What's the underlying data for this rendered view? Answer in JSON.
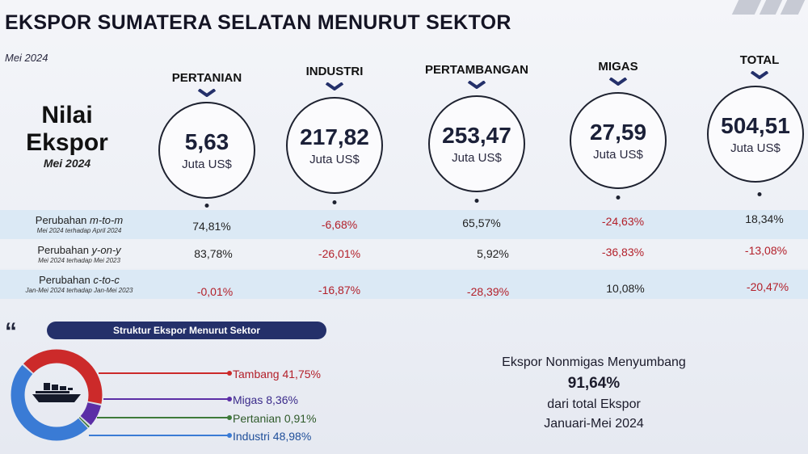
{
  "header": {
    "title": "EKSPOR SUMATERA SELATAN MENURUT SEKTOR",
    "period": "Mei 2024"
  },
  "row_label": {
    "line1": "Nilai",
    "line2": "Ekspor",
    "line3": "Mei 2024"
  },
  "sectors": [
    {
      "name": "PERTANIAN",
      "value": "5,63",
      "unit": "Juta US$",
      "mtom": "74,81%",
      "yony": "83,78%",
      "ctoc": "-0,01%"
    },
    {
      "name": "INDUSTRI",
      "value": "217,82",
      "unit": "Juta US$",
      "mtom": "-6,68%",
      "yony": "-26,01%",
      "ctoc": "-16,87%"
    },
    {
      "name": "PERTAMBANGAN",
      "value": "253,47",
      "unit": "Juta US$",
      "mtom": "65,57%",
      "yony": "5,92%",
      "ctoc": "-28,39%"
    },
    {
      "name": "MIGAS",
      "value": "27,59",
      "unit": "Juta US$",
      "mtom": "-24,63%",
      "yony": "-36,83%",
      "ctoc": "10,08%"
    },
    {
      "name": "TOTAL",
      "value": "504,51",
      "unit": "Juta US$",
      "mtom": "18,34%",
      "yony": "-13,08%",
      "ctoc": "-20,47%"
    }
  ],
  "changes": {
    "mtom": {
      "prefix": "Perubahan ",
      "term": "m-to-m",
      "note": "Mei 2024 terhadap April 2024"
    },
    "yony": {
      "prefix": "Perubahan ",
      "term": "y-on-y",
      "note": "Mei 2024 terhadap Mei 2023"
    },
    "ctoc": {
      "prefix": "Perubahan ",
      "term": "c-to-c",
      "note": "Jan-Mei 2024 terhadap Jan-Mei 2023"
    }
  },
  "structure": {
    "title": "Struktur Ekspor Menurut Sektor",
    "items": [
      {
        "label": "Tambang 41,75%",
        "share": 41.75,
        "color": "#cc2a2a"
      },
      {
        "label": "Migas 8,36%",
        "share": 8.36,
        "color": "#5b2ea6"
      },
      {
        "label": "Pertanian 0,91%",
        "share": 0.91,
        "color": "#3e7a3a"
      },
      {
        "label": "Industri 48,98%",
        "share": 48.98,
        "color": "#3a7bd5"
      }
    ]
  },
  "summary": {
    "line1": "Ekspor Nonmigas Menyumbang",
    "percent": "91,64%",
    "line3": "dari total Ekspor",
    "line4": "Januari-Mei 2024"
  },
  "colors": {
    "positive": "#222222",
    "negative": "#b3202a",
    "circle_border": "#1e2230",
    "pill": "#24306a"
  }
}
